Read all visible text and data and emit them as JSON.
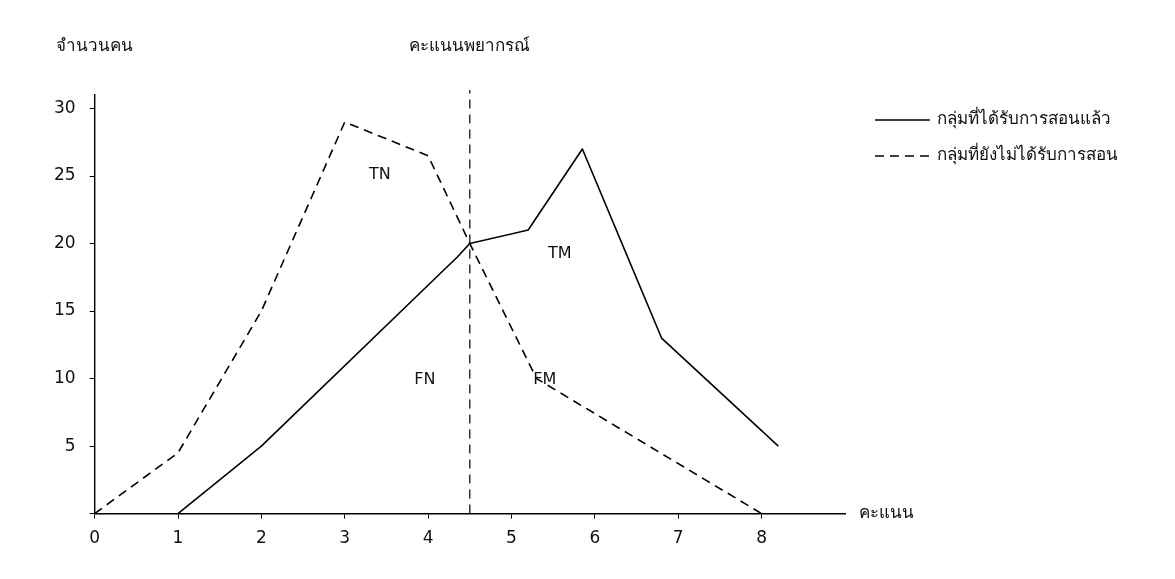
{
  "chart_data": {
    "type": "line",
    "xlabel": "คะแนน",
    "ylabel": "จำนวนคน",
    "xlim": [
      0,
      9
    ],
    "ylim": [
      0,
      31
    ],
    "xticks": [
      0,
      1,
      2,
      3,
      4,
      5,
      6,
      7,
      8
    ],
    "yticks": [
      {
        "value": 0,
        "label": null
      },
      5,
      10,
      15,
      20,
      25,
      30
    ],
    "series": [
      {
        "name": "กลุ่มที่ได้รับการสอนแล้ว",
        "color": "#000000",
        "line_style": "solid",
        "x": [
          1,
          2,
          4.35,
          4.5,
          5.2,
          5.85,
          6.8,
          8.2
        ],
        "values": [
          0,
          5,
          19,
          20,
          21,
          27,
          13,
          5
        ]
      },
      {
        "name": "กลุ่มที่ยังไม่ได้รับการสอน",
        "color": "#000000",
        "line_style": "dashed",
        "x": [
          0,
          1,
          2,
          3,
          4,
          4.5,
          5.3,
          8
        ],
        "values": [
          0,
          4.5,
          15,
          29,
          26.5,
          20,
          10,
          0
        ]
      }
    ],
    "ref_lines": [
      {
        "axis": "x",
        "value": 4.5,
        "label": "คะแนนพยากรณ์",
        "line_style": "dashed",
        "color": "#000000"
      }
    ],
    "annotations": [
      "TN",
      "TM",
      "FN",
      "FM"
    ],
    "grid": false,
    "legend": "top right",
    "marker": "none"
  }
}
